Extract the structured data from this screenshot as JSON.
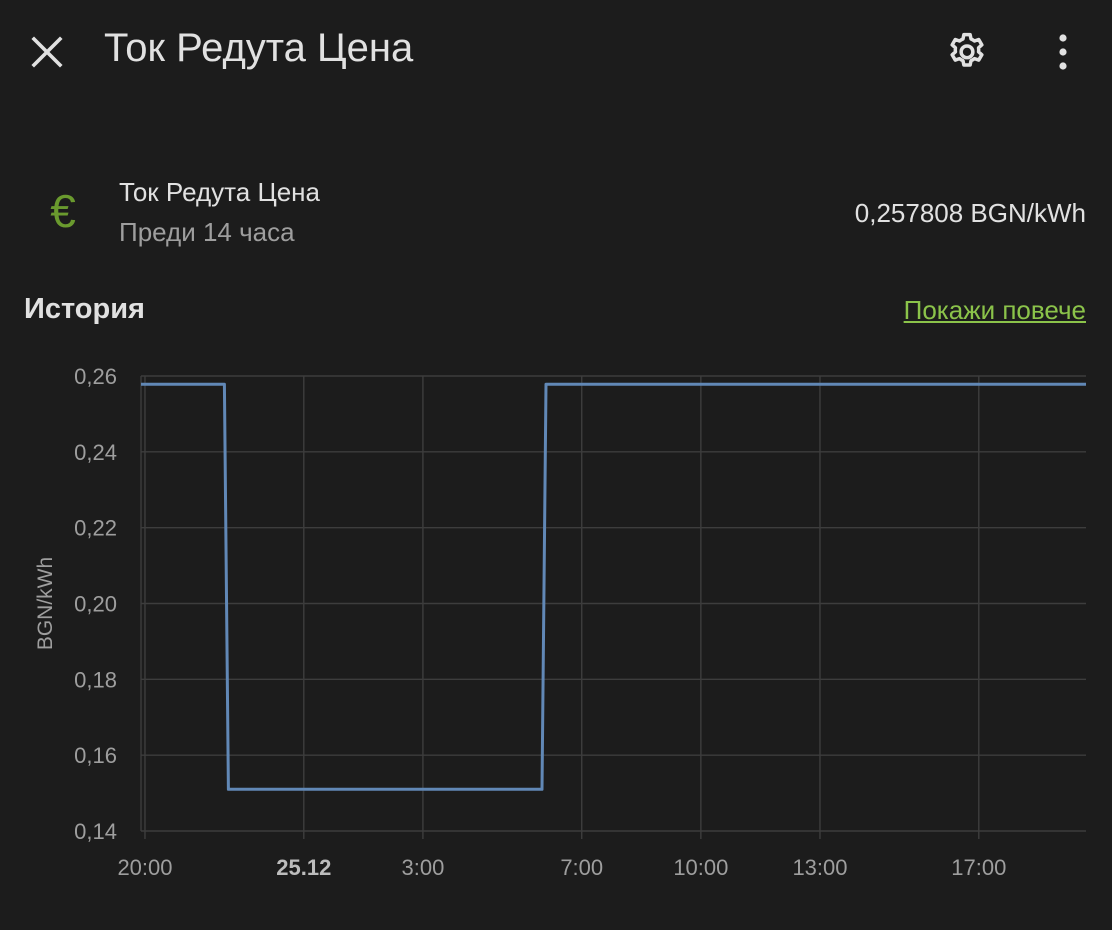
{
  "header": {
    "title": "Ток Редута Цена",
    "icons": {
      "close": "close-icon",
      "settings": "gear-icon",
      "more": "more-vertical-icon"
    }
  },
  "entity": {
    "icon": "euro-icon",
    "icon_glyph": "€",
    "icon_color": "#6a9a2e",
    "name": "Ток Редута Цена",
    "last_changed": "Преди 14 часа",
    "state": "0,257808 BGN/kWh"
  },
  "history": {
    "title": "История",
    "show_more": "Покажи повече",
    "accent": "#8bc34a"
  },
  "chart_data": {
    "type": "line",
    "step": true,
    "ylabel": "BGN/kWh",
    "ylim": [
      0.14,
      0.26
    ],
    "y_ticks": [
      "0,26",
      "0,24",
      "0,22",
      "0,20",
      "0,18",
      "0,16",
      "0,14"
    ],
    "y_tick_values": [
      0.26,
      0.24,
      0.22,
      0.2,
      0.18,
      0.16,
      0.14
    ],
    "x_ticks": [
      "20:00",
      "25.12",
      "3:00",
      "7:00",
      "10:00",
      "13:00",
      "17:00"
    ],
    "x_tick_hours": [
      20,
      24,
      27,
      31,
      34,
      37,
      41
    ],
    "x_bold_tick": "25.12",
    "xlim_hours": [
      19.9,
      43.7
    ],
    "grid": true,
    "series": [
      {
        "color": "#6188b6",
        "points": [
          [
            19.9,
            0.257808
          ],
          [
            22.0,
            0.257808
          ],
          [
            22.1,
            0.151
          ],
          [
            30.0,
            0.151
          ],
          [
            30.1,
            0.257808
          ],
          [
            43.7,
            0.257808
          ]
        ]
      }
    ]
  }
}
